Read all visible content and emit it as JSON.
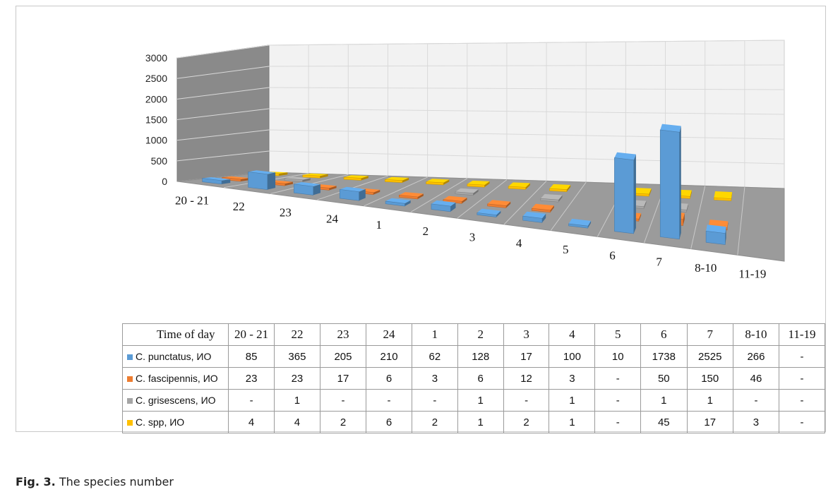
{
  "caption": {
    "label": "Fig. 3.",
    "text": "The species number"
  },
  "colors": {
    "C. punctatus": "#5b9bd5",
    "C. fascipennis": "#ed7d31",
    "C. grisescens": "#a5a5a5",
    "C. spp": "#ffc000"
  },
  "chart_data": {
    "type": "bar",
    "subtype": "3d-clustered-column-with-data-table",
    "title": "",
    "xlabel": "",
    "ylabel": "",
    "ylim": [
      0,
      3000
    ],
    "yticks": [
      "3000",
      "2500",
      "2000",
      "1500",
      "1000",
      "500",
      "0"
    ],
    "categories": [
      "20 - 21",
      "22",
      "23",
      "24",
      "1",
      "2",
      "3",
      "4",
      "5",
      "6",
      "7",
      "8-10",
      "11-19"
    ],
    "series": [
      {
        "name": "C. punctatus, ИО",
        "values": [
          85,
          365,
          205,
          210,
          62,
          128,
          17,
          100,
          10,
          1738,
          2525,
          266,
          null
        ],
        "labels": [
          "85",
          "365",
          "205",
          "210",
          "62",
          "128",
          "17",
          "100",
          "10",
          "1738",
          "2525",
          "266",
          "-"
        ]
      },
      {
        "name": "C. fascipennis, ИО",
        "values": [
          23,
          23,
          17,
          6,
          3,
          6,
          12,
          3,
          null,
          50,
          150,
          46,
          null
        ],
        "labels": [
          "23",
          "23",
          "17",
          "6",
          "3",
          "6",
          "12",
          "3",
          "-",
          "50",
          "150",
          "46",
          "-"
        ]
      },
      {
        "name": "C. grisescens, ИО",
        "values": [
          null,
          1,
          null,
          null,
          null,
          1,
          null,
          1,
          null,
          1,
          1,
          null,
          null
        ],
        "labels": [
          "-",
          "1",
          "-",
          "-",
          "-",
          "1",
          "-",
          "1",
          "-",
          "1",
          "1",
          "-",
          "-"
        ]
      },
      {
        "name": "C. spp, ИО",
        "values": [
          4,
          4,
          2,
          6,
          2,
          1,
          2,
          1,
          null,
          45,
          17,
          3,
          null
        ],
        "labels": [
          "4",
          "4",
          "2",
          "6",
          "2",
          "1",
          "2",
          "1",
          "-",
          "45",
          "17",
          "3",
          "-"
        ]
      }
    ],
    "table": {
      "header": "Time of day"
    },
    "grid": true,
    "legend": "in data table"
  }
}
